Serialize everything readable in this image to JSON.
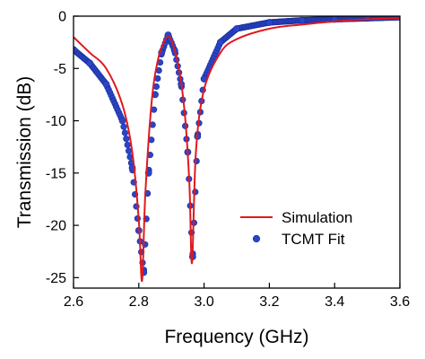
{
  "chart_data": {
    "type": "line",
    "title": "",
    "xlabel": "Frequency (GHz)",
    "ylabel": "Transmission (dB)",
    "xlim": [
      2.6,
      3.6
    ],
    "ylim": [
      -26,
      0
    ],
    "xticks": [
      "2.6",
      "2.8",
      "3.0",
      "3.2",
      "3.4",
      "3.6"
    ],
    "yticks": [
      "0",
      "-5",
      "-10",
      "-15",
      "-20",
      "-25"
    ],
    "legend_position": "lower-right",
    "grid": false,
    "series": [
      {
        "name": "Simulation",
        "style": "line",
        "color": "#e0191e",
        "x": [
          2.6,
          2.65,
          2.7,
          2.75,
          2.78,
          2.8,
          2.81,
          2.82,
          2.84,
          2.86,
          2.88,
          2.89,
          2.9,
          2.92,
          2.94,
          2.955,
          2.963,
          2.975,
          3.0,
          3.05,
          3.1,
          3.2,
          3.3,
          3.4,
          3.5,
          3.6
        ],
        "y": [
          -2.0,
          -3.5,
          -5.0,
          -8.5,
          -13.0,
          -19.5,
          -25.3,
          -17.0,
          -8.0,
          -4.0,
          -2.3,
          -2.0,
          -2.3,
          -4.5,
          -9.0,
          -16.0,
          -23.6,
          -13.0,
          -7.0,
          -3.5,
          -2.2,
          -1.2,
          -0.8,
          -0.5,
          -0.3,
          -0.2
        ]
      },
      {
        "name": "TCMT Fit",
        "style": "markers",
        "color": "#2a45c9",
        "x": [
          2.6,
          2.65,
          2.7,
          2.75,
          2.78,
          2.8,
          2.815,
          2.83,
          2.85,
          2.87,
          2.89,
          2.91,
          2.93,
          2.95,
          2.965,
          2.98,
          3.0,
          3.05,
          3.1,
          3.2,
          3.3,
          3.4,
          3.5,
          3.6
        ],
        "y": [
          -3.2,
          -4.5,
          -6.5,
          -10.0,
          -14.5,
          -20.5,
          -24.5,
          -15.0,
          -7.5,
          -3.5,
          -1.8,
          -3.3,
          -6.5,
          -13.0,
          -23.0,
          -11.5,
          -6.0,
          -2.5,
          -1.2,
          -0.6,
          -0.4,
          -0.3,
          -0.2,
          -0.1
        ]
      }
    ]
  }
}
